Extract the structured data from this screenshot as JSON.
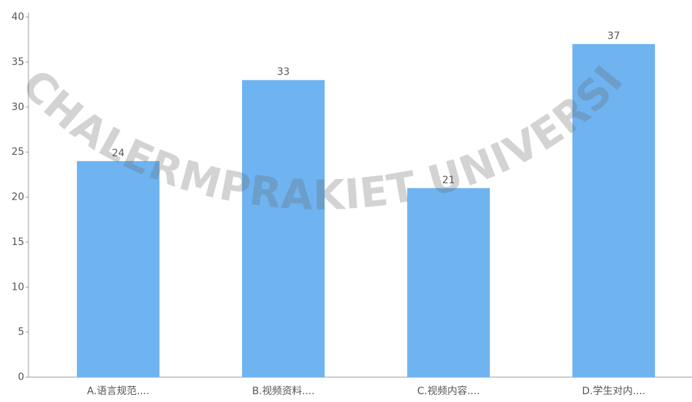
{
  "chart_data": {
    "type": "bar",
    "categories": [
      "A.语言规范....",
      "B.视频资料....",
      "C.视频内容....",
      "D.学生对内...."
    ],
    "values": [
      24,
      33,
      21,
      37
    ],
    "color": "#6fb4f1",
    "ylim": [
      0,
      40
    ],
    "yticks": [
      0,
      5,
      10,
      15,
      20,
      25,
      30,
      35,
      40
    ],
    "grid": false,
    "watermark": "CHALERMPRAKIET UNIVERSITY"
  }
}
